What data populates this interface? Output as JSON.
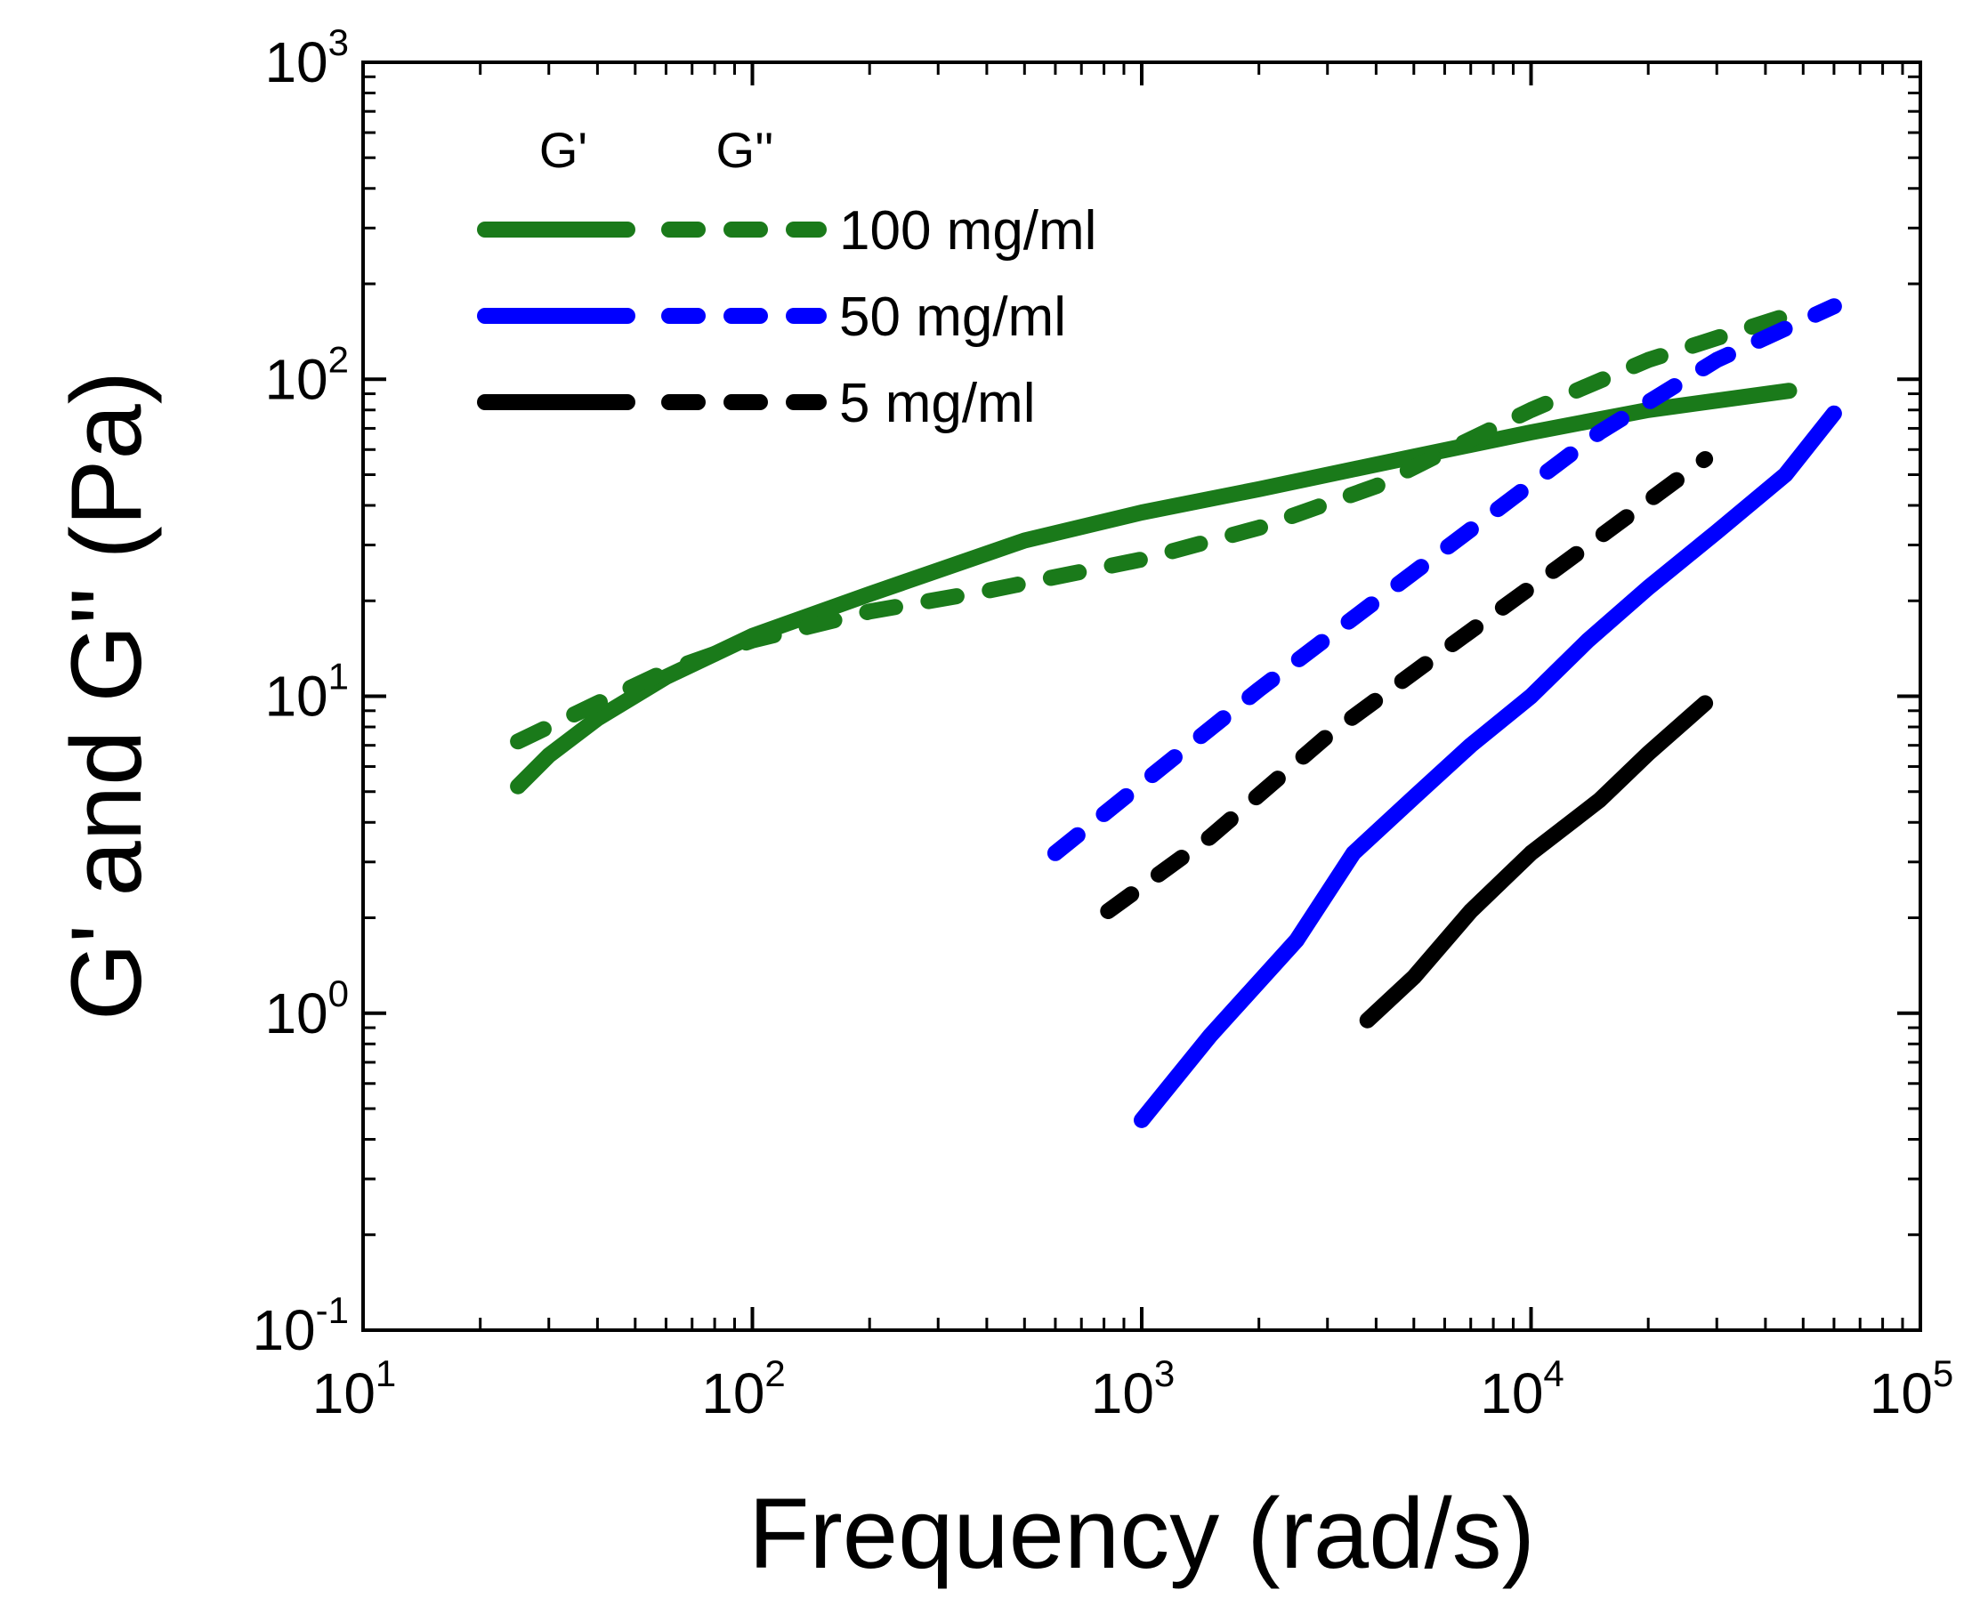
{
  "chart_data": {
    "type": "line",
    "xscale": "log",
    "yscale": "log",
    "xlim": [
      10,
      100000
    ],
    "ylim": [
      0.1,
      1000
    ],
    "xlabel": "Frequency (rad/s)",
    "ylabel": "G' and G'' (Pa)",
    "x_ticks": [
      {
        "base": "10",
        "exp": "1",
        "value": 10
      },
      {
        "base": "10",
        "exp": "2",
        "value": 100
      },
      {
        "base": "10",
        "exp": "3",
        "value": 1000
      },
      {
        "base": "10",
        "exp": "4",
        "value": 10000
      },
      {
        "base": "10",
        "exp": "5",
        "value": 100000
      }
    ],
    "y_ticks": [
      {
        "base": "10",
        "exp": "-1",
        "value": 0.1
      },
      {
        "base": "10",
        "exp": "0",
        "value": 1
      },
      {
        "base": "10",
        "exp": "1",
        "value": 10
      },
      {
        "base": "10",
        "exp": "2",
        "value": 100
      },
      {
        "base": "10",
        "exp": "3",
        "value": 1000
      }
    ],
    "legend": {
      "position": "top-left",
      "header_storage": "G'",
      "header_loss": "G''",
      "entries": [
        {
          "label": "100 mg/ml",
          "color": "#1a7a1a"
        },
        {
          "label": "50 mg/ml",
          "color": "#0000ff"
        },
        {
          "label": "5 mg/ml",
          "color": "#000000"
        }
      ]
    },
    "series": [
      {
        "name": "G' 100 mg/ml",
        "modulus": "G'",
        "concentration": "100 mg/ml",
        "color": "#1a7a1a",
        "dash": "solid",
        "x": [
          25,
          30,
          40,
          60,
          100,
          200,
          500,
          1000,
          2000,
          5000,
          10000,
          20000,
          46000
        ],
        "y": [
          5.2,
          6.5,
          8.5,
          11.5,
          15.5,
          21,
          31,
          38,
          45,
          57,
          68,
          80,
          92
        ]
      },
      {
        "name": "G'' 100 mg/ml",
        "modulus": "G''",
        "concentration": "100 mg/ml",
        "color": "#1a7a1a",
        "dash": "dashed",
        "x": [
          25,
          40,
          60,
          100,
          200,
          400,
          1000,
          2000,
          4000,
          6000,
          10000,
          20000,
          50000
        ],
        "y": [
          7.2,
          9.5,
          12,
          15,
          18.5,
          21.5,
          27,
          34,
          46,
          59,
          80,
          115,
          165
        ]
      },
      {
        "name": "G' 50 mg/ml",
        "modulus": "G'",
        "concentration": "50 mg/ml",
        "color": "#0000ff",
        "dash": "solid",
        "x": [
          1000,
          1500,
          2500,
          3500,
          5000,
          7000,
          10000,
          14000,
          20000,
          30000,
          45000,
          60000
        ],
        "y": [
          0.46,
          0.85,
          1.7,
          3.2,
          4.8,
          7,
          10,
          15,
          22,
          33,
          50,
          78
        ]
      },
      {
        "name": "G'' 50 mg/ml",
        "modulus": "G''",
        "concentration": "50 mg/ml",
        "color": "#0000ff",
        "dash": "dashed",
        "x": [
          600,
          1000,
          2000,
          4000,
          8000,
          15000,
          30000,
          60000
        ],
        "y": [
          3.2,
          5.3,
          10.5,
          20,
          38,
          68,
          115,
          170
        ]
      },
      {
        "name": "G' 5 mg/ml",
        "modulus": "G'",
        "concentration": "5 mg/ml",
        "color": "#000000",
        "dash": "solid",
        "x": [
          3800,
          5000,
          7000,
          10000,
          15000,
          20000,
          28000
        ],
        "y": [
          0.95,
          1.3,
          2.1,
          3.2,
          4.7,
          6.6,
          9.5
        ]
      },
      {
        "name": "G'' 5 mg/ml",
        "modulus": "G''",
        "concentration": "5 mg/ml",
        "color": "#000000",
        "dash": "dashed",
        "x": [
          820,
          1500,
          3000,
          6000,
          12000,
          28000
        ],
        "y": [
          2.1,
          3.6,
          7.5,
          14,
          26,
          56
        ]
      }
    ]
  }
}
